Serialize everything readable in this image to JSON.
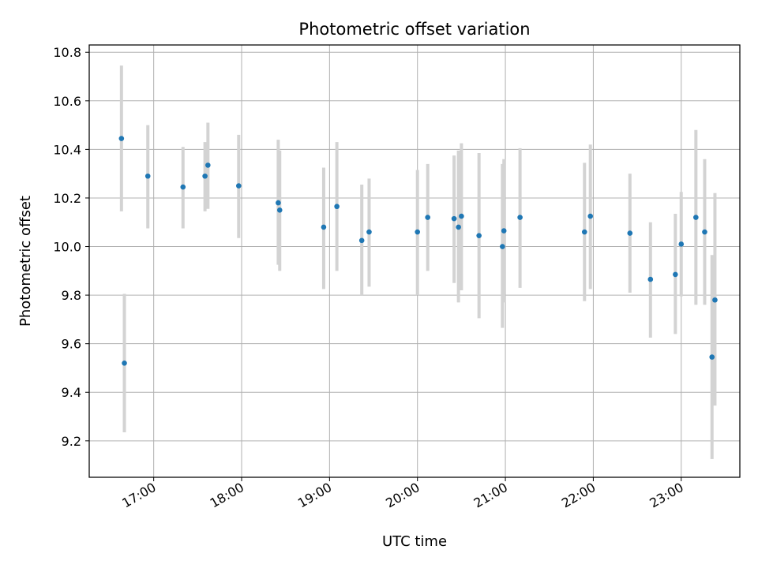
{
  "chart_data": {
    "type": "scatter",
    "title": "Photometric offset variation",
    "xlabel": "UTC time",
    "ylabel": "Photometric offset",
    "x_axis_type": "time",
    "xlim": [
      "16:16",
      "23:40"
    ],
    "ylim": [
      9.05,
      10.83
    ],
    "x_ticks": [
      "17:00",
      "18:00",
      "19:00",
      "20:00",
      "21:00",
      "22:00",
      "23:00"
    ],
    "y_ticks": [
      9.2,
      9.4,
      9.6,
      9.8,
      10.0,
      10.2,
      10.4,
      10.6,
      10.8
    ],
    "y_tick_labels": [
      "9.2",
      "9.4",
      "9.6",
      "9.8",
      "10.0",
      "10.2",
      "10.4",
      "10.6",
      "10.8"
    ],
    "grid": true,
    "legend": "none",
    "colors": {
      "point": "#1f77b4",
      "errorbar": "#d3d3d3",
      "grid": "#b0b0b0"
    },
    "series": [
      {
        "points": [
          {
            "t": "16:38",
            "y": 10.445,
            "ylo": 10.145,
            "yhi": 10.745
          },
          {
            "t": "16:40",
            "y": 9.52,
            "ylo": 9.235,
            "yhi": 9.805
          },
          {
            "t": "16:56",
            "y": 10.29,
            "ylo": 10.075,
            "yhi": 10.5
          },
          {
            "t": "17:20",
            "y": 10.245,
            "ylo": 10.075,
            "yhi": 10.41
          },
          {
            "t": "17:35",
            "y": 10.29,
            "ylo": 10.145,
            "yhi": 10.43
          },
          {
            "t": "17:37",
            "y": 10.335,
            "ylo": 10.155,
            "yhi": 10.51
          },
          {
            "t": "17:58",
            "y": 10.25,
            "ylo": 10.035,
            "yhi": 10.46
          },
          {
            "t": "18:25",
            "y": 10.18,
            "ylo": 9.925,
            "yhi": 10.44
          },
          {
            "t": "18:26",
            "y": 10.15,
            "ylo": 9.9,
            "yhi": 10.395
          },
          {
            "t": "18:56",
            "y": 10.08,
            "ylo": 9.825,
            "yhi": 10.325
          },
          {
            "t": "19:05",
            "y": 10.165,
            "ylo": 9.9,
            "yhi": 10.43
          },
          {
            "t": "19:22",
            "y": 10.025,
            "ylo": 9.8,
            "yhi": 10.255
          },
          {
            "t": "19:27",
            "y": 10.06,
            "ylo": 9.835,
            "yhi": 10.28
          },
          {
            "t": "20:00",
            "y": 10.06,
            "ylo": 9.8,
            "yhi": 10.315
          },
          {
            "t": "20:07",
            "y": 10.12,
            "ylo": 9.9,
            "yhi": 10.34
          },
          {
            "t": "20:25",
            "y": 10.115,
            "ylo": 9.85,
            "yhi": 10.375
          },
          {
            "t": "20:28",
            "y": 10.08,
            "ylo": 9.77,
            "yhi": 10.395
          },
          {
            "t": "20:30",
            "y": 10.125,
            "ylo": 9.82,
            "yhi": 10.425
          },
          {
            "t": "20:42",
            "y": 10.045,
            "ylo": 9.705,
            "yhi": 10.385
          },
          {
            "t": "20:58",
            "y": 10.0,
            "ylo": 9.665,
            "yhi": 10.34
          },
          {
            "t": "20:59",
            "y": 10.065,
            "ylo": 9.77,
            "yhi": 10.36
          },
          {
            "t": "21:10",
            "y": 10.12,
            "ylo": 9.83,
            "yhi": 10.405
          },
          {
            "t": "21:54",
            "y": 10.06,
            "ylo": 9.775,
            "yhi": 10.345
          },
          {
            "t": "21:58",
            "y": 10.125,
            "ylo": 9.825,
            "yhi": 10.42
          },
          {
            "t": "22:25",
            "y": 10.055,
            "ylo": 9.81,
            "yhi": 10.3
          },
          {
            "t": "22:39",
            "y": 9.865,
            "ylo": 9.625,
            "yhi": 10.1
          },
          {
            "t": "22:56",
            "y": 9.885,
            "ylo": 9.64,
            "yhi": 10.135
          },
          {
            "t": "23:00",
            "y": 10.01,
            "ylo": 9.795,
            "yhi": 10.225
          },
          {
            "t": "23:10",
            "y": 10.12,
            "ylo": 9.76,
            "yhi": 10.48
          },
          {
            "t": "23:16",
            "y": 10.06,
            "ylo": 9.76,
            "yhi": 10.36
          },
          {
            "t": "23:21",
            "y": 9.545,
            "ylo": 9.125,
            "yhi": 9.965
          },
          {
            "t": "23:23",
            "y": 9.78,
            "ylo": 9.345,
            "yhi": 10.22
          }
        ]
      }
    ]
  }
}
